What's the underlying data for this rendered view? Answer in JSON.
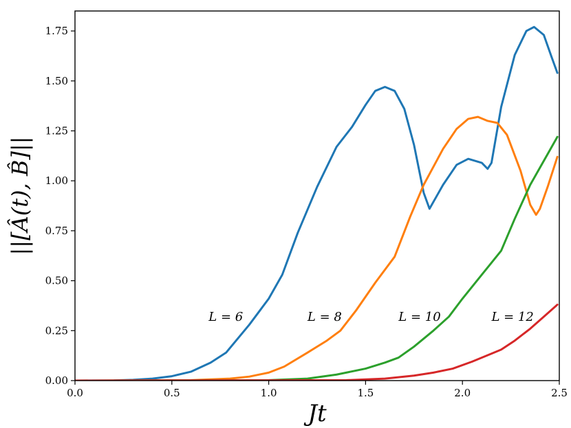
{
  "chart_data": {
    "type": "line",
    "xlabel": "Jt",
    "ylabel": "||[Â(t), B̂]||",
    "xlim": [
      0.0,
      2.5
    ],
    "ylim": [
      0.0,
      1.85
    ],
    "xticks": [
      "0.0",
      "0.5",
      "1.0",
      "1.5",
      "2.0",
      "2.5"
    ],
    "yticks": [
      "0.00",
      "0.25",
      "0.50",
      "0.75",
      "1.00",
      "1.25",
      "1.50",
      "1.75"
    ],
    "grid": false,
    "legend": "none",
    "series": [
      {
        "name": "L = 6",
        "color": "#1f77b4",
        "label_pos": [
          0.69,
          0.32
        ],
        "points": [
          [
            0.0,
            0.0
          ],
          [
            0.2,
            0.001
          ],
          [
            0.3,
            0.004
          ],
          [
            0.4,
            0.01
          ],
          [
            0.5,
            0.022
          ],
          [
            0.6,
            0.045
          ],
          [
            0.7,
            0.09
          ],
          [
            0.78,
            0.14
          ],
          [
            0.9,
            0.28
          ],
          [
            1.0,
            0.41
          ],
          [
            1.07,
            0.53
          ],
          [
            1.15,
            0.74
          ],
          [
            1.25,
            0.97
          ],
          [
            1.35,
            1.17
          ],
          [
            1.43,
            1.27
          ],
          [
            1.5,
            1.38
          ],
          [
            1.55,
            1.45
          ],
          [
            1.6,
            1.47
          ],
          [
            1.65,
            1.45
          ],
          [
            1.7,
            1.36
          ],
          [
            1.75,
            1.18
          ],
          [
            1.8,
            0.94
          ],
          [
            1.83,
            0.86
          ],
          [
            1.9,
            0.98
          ],
          [
            1.97,
            1.08
          ],
          [
            2.03,
            1.11
          ],
          [
            2.1,
            1.09
          ],
          [
            2.13,
            1.06
          ],
          [
            2.15,
            1.09
          ],
          [
            2.2,
            1.37
          ],
          [
            2.27,
            1.63
          ],
          [
            2.33,
            1.75
          ],
          [
            2.37,
            1.77
          ],
          [
            2.42,
            1.73
          ],
          [
            2.46,
            1.62
          ],
          [
            2.49,
            1.54
          ]
        ]
      },
      {
        "name": "L = 8",
        "color": "#ff7f0e",
        "label_pos": [
          1.2,
          0.32
        ],
        "points": [
          [
            0.0,
            0.0
          ],
          [
            0.6,
            0.002
          ],
          [
            0.8,
            0.01
          ],
          [
            0.9,
            0.02
          ],
          [
            1.0,
            0.04
          ],
          [
            1.08,
            0.07
          ],
          [
            1.2,
            0.14
          ],
          [
            1.3,
            0.2
          ],
          [
            1.37,
            0.25
          ],
          [
            1.45,
            0.35
          ],
          [
            1.55,
            0.49
          ],
          [
            1.65,
            0.62
          ],
          [
            1.73,
            0.82
          ],
          [
            1.8,
            0.98
          ],
          [
            1.9,
            1.16
          ],
          [
            1.97,
            1.26
          ],
          [
            2.03,
            1.31
          ],
          [
            2.08,
            1.32
          ],
          [
            2.13,
            1.3
          ],
          [
            2.18,
            1.29
          ],
          [
            2.23,
            1.23
          ],
          [
            2.3,
            1.05
          ],
          [
            2.35,
            0.88
          ],
          [
            2.38,
            0.83
          ],
          [
            2.4,
            0.86
          ],
          [
            2.44,
            0.97
          ],
          [
            2.49,
            1.12
          ]
        ]
      },
      {
        "name": "L = 10",
        "color": "#2ca02c",
        "label_pos": [
          1.67,
          0.32
        ],
        "points": [
          [
            0.0,
            0.0
          ],
          [
            1.0,
            0.002
          ],
          [
            1.2,
            0.01
          ],
          [
            1.35,
            0.03
          ],
          [
            1.5,
            0.06
          ],
          [
            1.6,
            0.09
          ],
          [
            1.67,
            0.115
          ],
          [
            1.75,
            0.17
          ],
          [
            1.85,
            0.25
          ],
          [
            1.93,
            0.32
          ],
          [
            2.0,
            0.41
          ],
          [
            2.1,
            0.53
          ],
          [
            2.2,
            0.65
          ],
          [
            2.27,
            0.81
          ],
          [
            2.35,
            0.98
          ],
          [
            2.42,
            1.1
          ],
          [
            2.49,
            1.22
          ]
        ]
      },
      {
        "name": "L = 12",
        "color": "#d62728",
        "label_pos": [
          2.15,
          0.32
        ],
        "points": [
          [
            0.0,
            0.0
          ],
          [
            1.4,
            0.002
          ],
          [
            1.6,
            0.01
          ],
          [
            1.75,
            0.025
          ],
          [
            1.85,
            0.04
          ],
          [
            1.95,
            0.06
          ],
          [
            2.05,
            0.095
          ],
          [
            2.15,
            0.135
          ],
          [
            2.2,
            0.155
          ],
          [
            2.27,
            0.2
          ],
          [
            2.35,
            0.26
          ],
          [
            2.42,
            0.32
          ],
          [
            2.49,
            0.38
          ]
        ]
      }
    ]
  }
}
